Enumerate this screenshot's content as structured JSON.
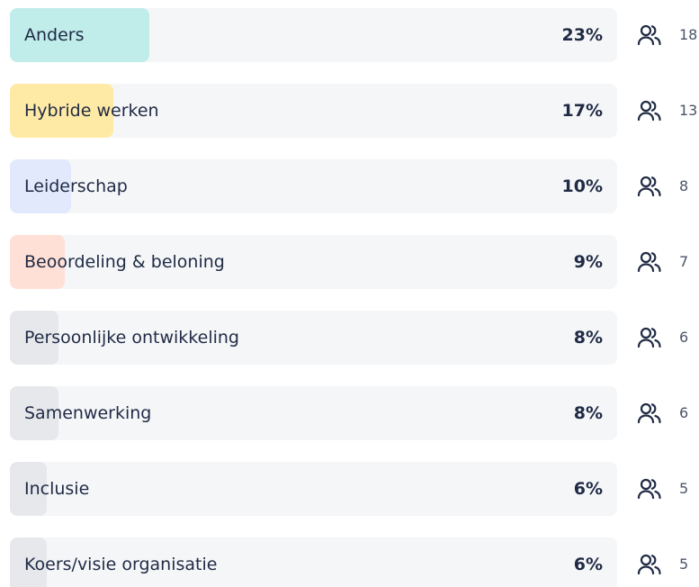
{
  "chart_data": {
    "type": "bar",
    "orientation": "horizontal",
    "categories": [
      "Anders",
      "Hybride werken",
      "Leiderschap",
      "Beoordeling & beloning",
      "Persoonlijke ontwikkeling",
      "Samenwerking",
      "Inclusie",
      "Koers/visie organisatie"
    ],
    "values": [
      23,
      17,
      10,
      9,
      8,
      8,
      6,
      6
    ],
    "value_labels": [
      "23%",
      "17%",
      "10%",
      "9%",
      "8%",
      "8%",
      "6%",
      "6%"
    ],
    "counts": [
      18,
      13,
      8,
      7,
      6,
      6,
      5,
      5
    ],
    "colors": [
      "#c0ecea",
      "#ffeaa5",
      "#e3e9fd",
      "#ffe0d6",
      "#e6e8ec",
      "#e6e8ec",
      "#e6e8ec",
      "#e6e8ec"
    ],
    "xlim": [
      0,
      100
    ]
  }
}
